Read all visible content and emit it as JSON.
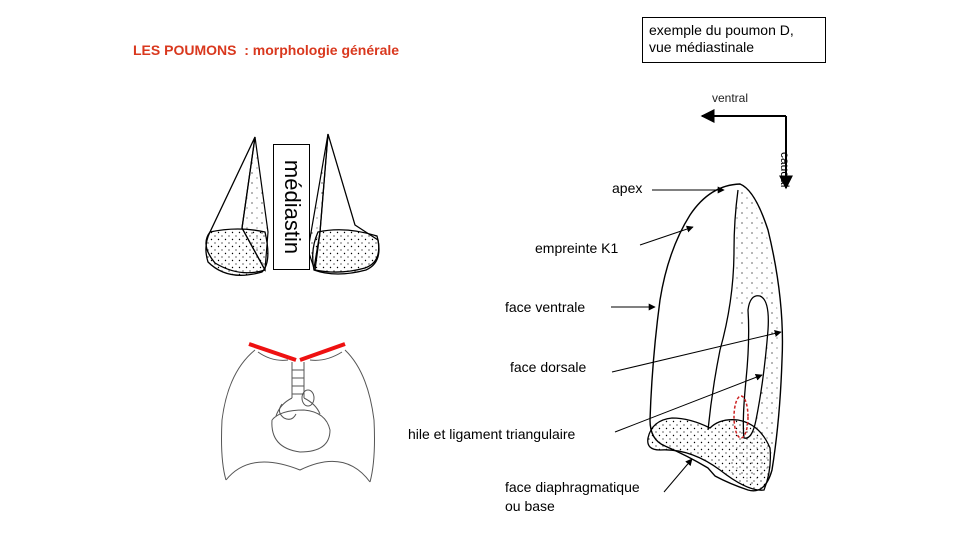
{
  "title": "LES POUMONS  : morphologie générale",
  "info_box": {
    "line1": "exemple du poumon D,",
    "line2": "vue médiastinale"
  },
  "orientation": {
    "ventral": "ventral",
    "caudal": "caudal"
  },
  "mediastin_label": "médiastin",
  "labels": {
    "apex": "apex",
    "empreinte": "empreinte K1",
    "face_ventrale": "face ventrale",
    "face_dorsale": "face dorsale",
    "hile": "hile et ligament triangulaire",
    "face_diaphragmatique_line1": "face diaphragmatique",
    "face_diaphragmatique_line2": "ou base"
  },
  "colors": {
    "title": "#d9381e",
    "cut_line": "#ee1111",
    "hile_outline": "#cc2222"
  }
}
